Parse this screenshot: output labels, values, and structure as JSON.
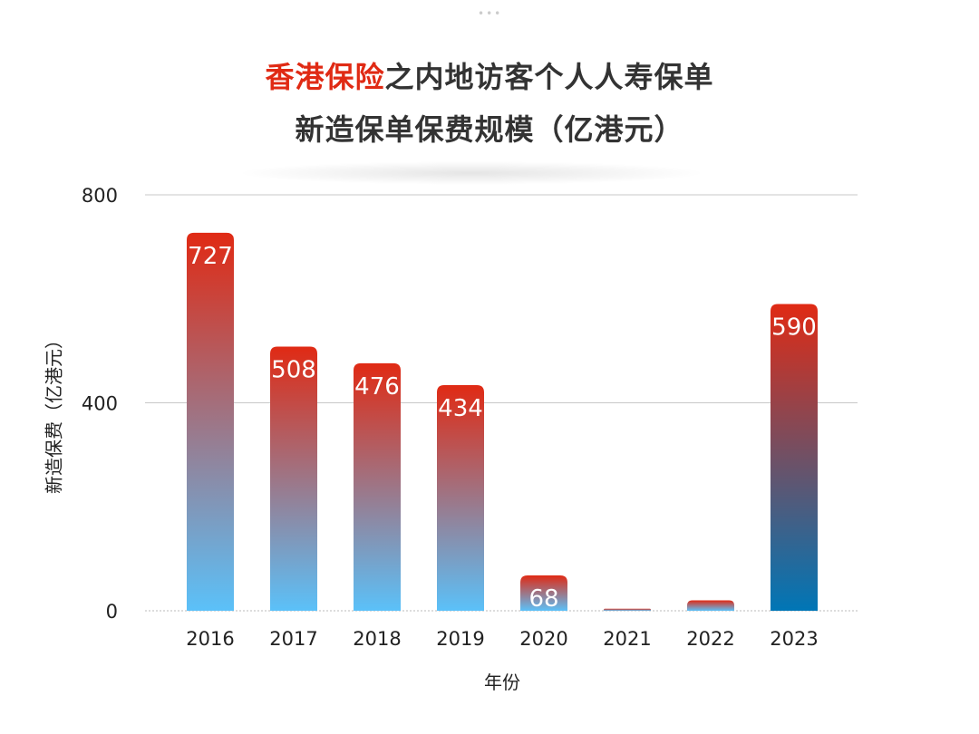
{
  "title": {
    "highlight": "香港保险",
    "line1_rest": "之内地访客个人人寿保单",
    "line2": "新造保单保费规模（亿港元）"
  },
  "colors": {
    "highlight": "#e02a14",
    "bar_top": "#e02a14",
    "bar_bottom": "#5bc1f9",
    "bar_last_bottom": "#0076b6"
  },
  "chart_data": {
    "type": "bar",
    "categories": [
      "2016",
      "2017",
      "2018",
      "2019",
      "2020",
      "2021",
      "2022",
      "2023"
    ],
    "values": [
      727,
      508,
      476,
      434,
      68,
      4,
      20,
      590
    ],
    "data_labels": [
      "727",
      "508",
      "476",
      "434",
      "68",
      "",
      "",
      "590"
    ],
    "ylim": [
      0,
      800
    ],
    "yticks": [
      0,
      400,
      800
    ],
    "xlabel": "年份",
    "ylabel": "新造保费（亿港元）",
    "grid": true
  }
}
